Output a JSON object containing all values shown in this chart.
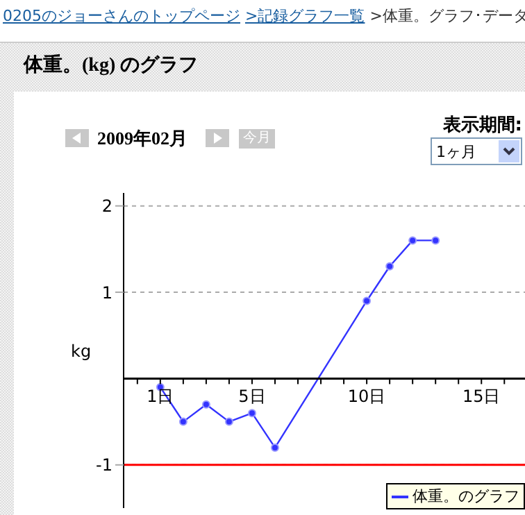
{
  "chart_data": {
    "type": "line",
    "title": "体重。(kg) のグラフ",
    "subtitle": "2009年02月",
    "ylabel": "kg",
    "annotations": [
      "0205のジョーさんのトップページ",
      ">記録グラフ一覧",
      ">体重。グラフ･データ",
      "今月",
      "表示期間:",
      "1ヶ月"
    ],
    "series": [
      {
        "name": "体重。のグラフ",
        "color": "#3333ff",
        "x": [
          1,
          2,
          3,
          4,
          5,
          6,
          10,
          11,
          12,
          13
        ],
        "values": [
          -0.1,
          -0.5,
          -0.3,
          -0.5,
          -0.4,
          -0.8,
          0.9,
          1.3,
          1.6,
          1.6
        ]
      }
    ],
    "xlim": [
      -0.6,
      16.9
    ],
    "xticks": [
      {
        "value": 0,
        "label": null
      },
      {
        "value": 1,
        "label": "1日"
      },
      {
        "value": 2,
        "label": null
      },
      {
        "value": 3,
        "label": null
      },
      {
        "value": 4,
        "label": null
      },
      {
        "value": 5,
        "label": "5日"
      },
      {
        "value": 6,
        "label": null
      },
      {
        "value": 7,
        "label": null
      },
      {
        "value": 8,
        "label": null
      },
      {
        "value": 9,
        "label": null
      },
      {
        "value": 10,
        "label": "10日"
      },
      {
        "value": 11,
        "label": null
      },
      {
        "value": 12,
        "label": null
      },
      {
        "value": 13,
        "label": null
      },
      {
        "value": 14,
        "label": null
      },
      {
        "value": 15,
        "label": "15日"
      },
      {
        "value": 16,
        "label": null
      }
    ],
    "ylim": [
      -1.5,
      2.15
    ],
    "yticks": [
      -1,
      1,
      2
    ],
    "ref_lines": [
      {
        "axis": "y",
        "value": -1,
        "color": "#ff0000",
        "line_style": "solid"
      }
    ],
    "grid": "y",
    "marker": "circle",
    "line_style": "solid",
    "legend": "bottom right"
  }
}
